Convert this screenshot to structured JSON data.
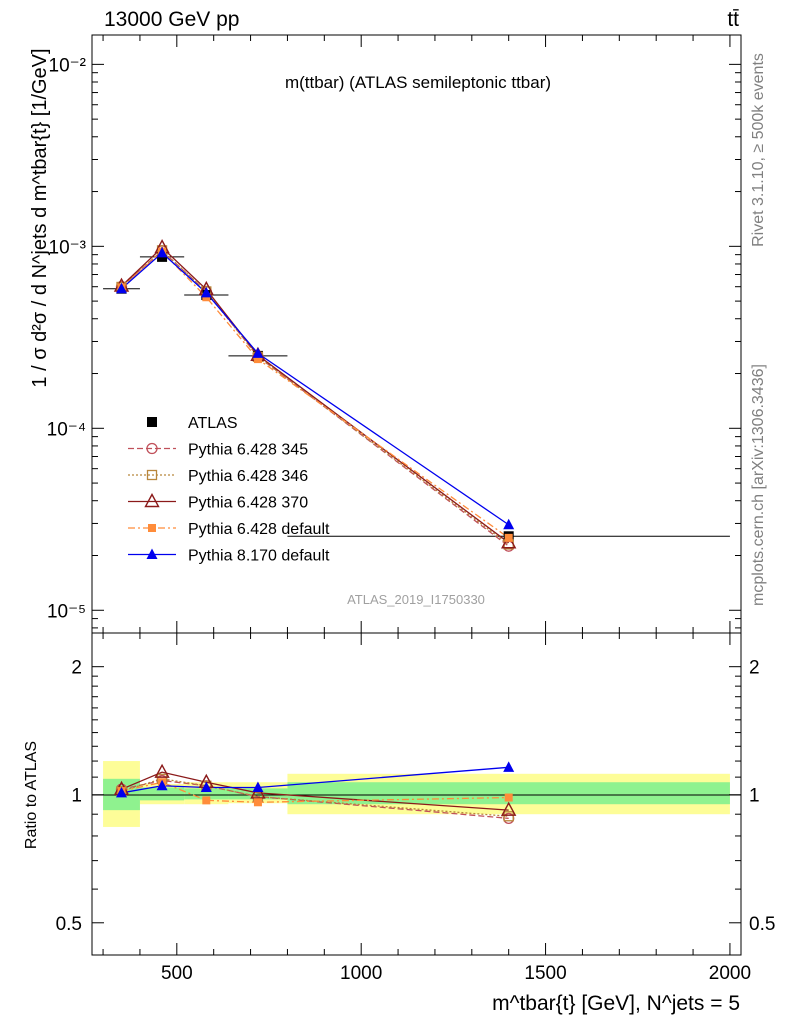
{
  "header": {
    "energy_label": "13000 GeV pp",
    "process_label": "tt̄"
  },
  "side_labels": {
    "rivet": "Rivet 3.1.10, ≥ 500k events",
    "mcplots": "mcplots.cern.ch [arXiv:1306.3436]"
  },
  "colors": {
    "band_inner": "#8ff28f",
    "band_outer": "#fdfd98",
    "atlas": "#000000",
    "p345": "#c0505a",
    "p346": "#b8863c",
    "p370": "#8b1a1a",
    "pdefault": "#ff8c3a",
    "p8": "#0000ee"
  },
  "chart_data": [
    {
      "type": "line",
      "panel": "main",
      "title": "m(ttbar) (ATLAS semileptonic ttbar)",
      "analysis_label": "ATLAS_2019_I1750330",
      "ylabel": "1 / σ d²σ / d N^jets d m^tbar{t} [1/GeV]",
      "yscale": "log",
      "ylim": [
        7.5e-06,
        0.0145
      ],
      "xlim": [
        270,
        2030
      ],
      "y_tick_labels": [
        "10⁻⁵",
        "10⁻⁴",
        "10⁻³",
        "10⁻²"
      ],
      "legend_position": "center-left",
      "bin_edges": [
        300,
        400,
        520,
        640,
        800,
        2000
      ],
      "x": [
        350,
        460,
        580,
        720,
        1400
      ],
      "series": [
        {
          "name": "ATLAS",
          "values": [
            0.000585,
            0.000875,
            0.00054,
            0.00025,
            2.55e-05
          ],
          "marker": "square",
          "line": "none",
          "color": "#000000"
        },
        {
          "name": "Pythia 6.428 345",
          "values": [
            0.0006,
            0.000945,
            0.000565,
            0.000248,
            2.25e-05
          ],
          "marker": "open-circle",
          "line": "dashed",
          "color": "#c0505a"
        },
        {
          "name": "Pythia 6.428 346",
          "values": [
            0.000598,
            0.00095,
            0.000565,
            0.000247,
            2.3e-05
          ],
          "marker": "open-square",
          "line": "dotted",
          "color": "#b8863c"
        },
        {
          "name": "Pythia 6.428 370",
          "values": [
            0.000605,
            0.000985,
            0.00058,
            0.000252,
            2.35e-05
          ],
          "marker": "open-triangle",
          "line": "solid",
          "color": "#8b1a1a"
        },
        {
          "name": "Pythia 6.428 default",
          "values": [
            0.000595,
            0.000935,
            0.000525,
            0.00024,
            2.5e-05
          ],
          "marker": "filled-square",
          "line": "dashdot",
          "color": "#ff8c3a"
        },
        {
          "name": "Pythia 8.170 default",
          "values": [
            0.000585,
            0.00092,
            0.000555,
            0.000258,
            2.95e-05
          ],
          "marker": "filled-triangle",
          "line": "solid",
          "color": "#0000ee"
        }
      ]
    },
    {
      "type": "line",
      "panel": "ratio",
      "ylabel": "Ratio to ATLAS",
      "xlabel": "m^tbar{t} [GeV], N^jets = 5",
      "yscale": "log",
      "ylim": [
        0.42,
        2.4
      ],
      "xlim": [
        270,
        2030
      ],
      "y_ticks": [
        0.5,
        1,
        2
      ],
      "y_tick_labels": [
        "0.5",
        "1",
        "2"
      ],
      "x_ticks": [
        500,
        1000,
        1500,
        2000
      ],
      "x_tick_labels": [
        "500",
        "1000",
        "1500",
        "2000"
      ],
      "bands": [
        {
          "x0": 300,
          "x1": 400,
          "inner": [
            0.92,
            1.09
          ],
          "outer": [
            0.84,
            1.2
          ]
        },
        {
          "x0": 400,
          "x1": 520,
          "inner": [
            0.97,
            1.04
          ],
          "outer": [
            0.95,
            1.06
          ]
        },
        {
          "x0": 520,
          "x1": 640,
          "inner": [
            0.975,
            1.035
          ],
          "outer": [
            0.95,
            1.07
          ]
        },
        {
          "x0": 640,
          "x1": 800,
          "inner": [
            0.975,
            1.035
          ],
          "outer": [
            0.955,
            1.07
          ]
        },
        {
          "x0": 800,
          "x1": 2000,
          "inner": [
            0.95,
            1.07
          ],
          "outer": [
            0.9,
            1.12
          ]
        }
      ],
      "x": [
        350,
        460,
        580,
        720,
        1400
      ],
      "series": [
        {
          "name": "Pythia 6.428 345",
          "values": [
            1.03,
            1.08,
            1.05,
            0.99,
            0.88
          ]
        },
        {
          "name": "Pythia 6.428 346",
          "values": [
            1.02,
            1.09,
            1.05,
            0.99,
            0.89
          ]
        },
        {
          "name": "Pythia 6.428 370",
          "values": [
            1.03,
            1.13,
            1.07,
            1.01,
            0.92
          ]
        },
        {
          "name": "Pythia 6.428 default",
          "values": [
            1.02,
            1.07,
            0.97,
            0.96,
            0.985
          ]
        },
        {
          "name": "Pythia 8.170 default",
          "values": [
            1.01,
            1.05,
            1.04,
            1.04,
            1.16
          ]
        }
      ]
    }
  ]
}
